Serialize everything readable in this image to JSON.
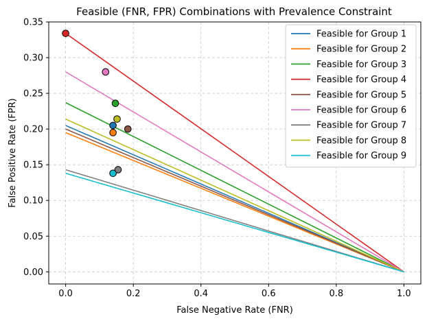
{
  "chart_data": {
    "type": "line",
    "title": "Feasible (FNR, FPR) Combinations with Prevalence Constraint",
    "xlabel": "False Negative Rate (FNR)",
    "ylabel": "False Positive Rate (FPR)",
    "xlim": [
      -0.05,
      1.05
    ],
    "ylim": [
      -0.017,
      0.35
    ],
    "xticks": [
      0.0,
      0.2,
      0.4,
      0.6,
      0.8,
      1.0
    ],
    "xtick_labels": [
      "0.0",
      "0.2",
      "0.4",
      "0.6",
      "0.8",
      "1.0"
    ],
    "yticks": [
      0.0,
      0.05,
      0.1,
      0.15,
      0.2,
      0.25,
      0.3,
      0.35
    ],
    "ytick_labels": [
      "0.00",
      "0.05",
      "0.10",
      "0.15",
      "0.20",
      "0.25",
      "0.30",
      "0.35"
    ],
    "grid": true,
    "legend_position": "top-right",
    "series": [
      {
        "name": "Feasible for Group 1",
        "color": "#1f77b4",
        "x": [
          0,
          1
        ],
        "y": [
          0.205,
          0
        ],
        "point": {
          "x": 0.14,
          "y": 0.205
        }
      },
      {
        "name": "Feasible for Group 2",
        "color": "#ff7f0e",
        "x": [
          0,
          1
        ],
        "y": [
          0.195,
          0
        ],
        "point": {
          "x": 0.14,
          "y": 0.195
        }
      },
      {
        "name": "Feasible for Group 3",
        "color": "#2ca02c",
        "x": [
          0,
          1
        ],
        "y": [
          0.237,
          0
        ],
        "point": {
          "x": 0.147,
          "y": 0.236
        }
      },
      {
        "name": "Feasible for Group 4",
        "color": "#d62728",
        "x": [
          0,
          1
        ],
        "y": [
          0.334,
          0
        ],
        "point": {
          "x": 0.0,
          "y": 0.334
        }
      },
      {
        "name": "Feasible for Group 5",
        "color": "#8c564b",
        "x": [
          0,
          1
        ],
        "y": [
          0.2,
          0
        ],
        "point": {
          "x": 0.184,
          "y": 0.2
        }
      },
      {
        "name": "Feasible for Group 6",
        "color": "#e377c2",
        "x": [
          0,
          1
        ],
        "y": [
          0.28,
          0
        ],
        "point": {
          "x": 0.118,
          "y": 0.28
        }
      },
      {
        "name": "Feasible for Group 7",
        "color": "#7f7f7f",
        "x": [
          0,
          1
        ],
        "y": [
          0.143,
          0
        ],
        "point": {
          "x": 0.155,
          "y": 0.143
        }
      },
      {
        "name": "Feasible for Group 8",
        "color": "#bcbd22",
        "x": [
          0,
          1
        ],
        "y": [
          0.214,
          0
        ],
        "point": {
          "x": 0.152,
          "y": 0.214
        }
      },
      {
        "name": "Feasible for Group 9",
        "color": "#17becf",
        "x": [
          0,
          1
        ],
        "y": [
          0.138,
          0
        ],
        "point": {
          "x": 0.14,
          "y": 0.138
        }
      }
    ]
  }
}
